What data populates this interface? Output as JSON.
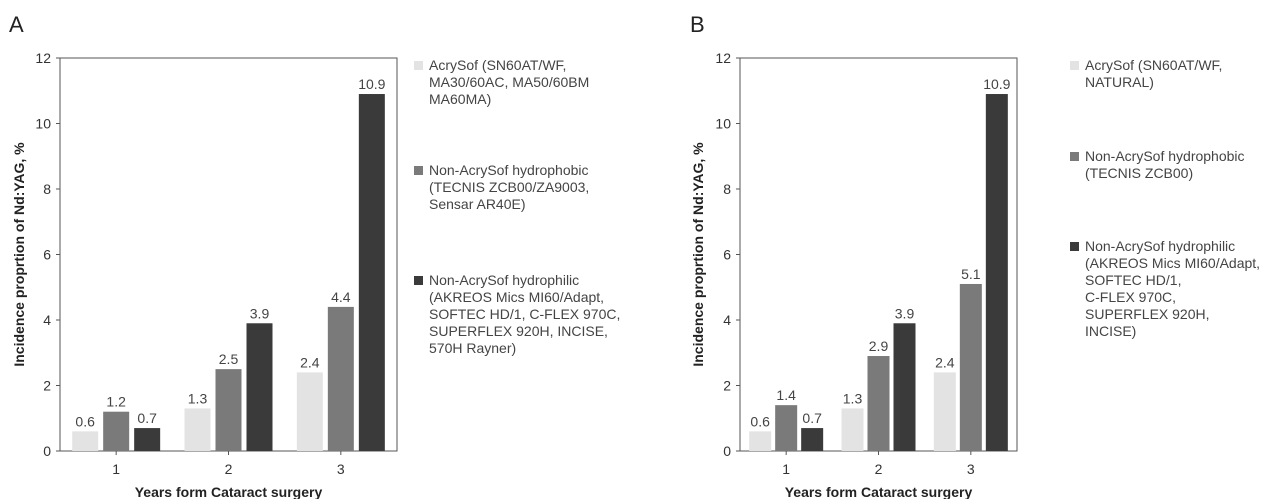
{
  "chart_data": [
    {
      "type": "bar",
      "panel": "A",
      "categories": [
        "1",
        "2",
        "3"
      ],
      "series": [
        {
          "name": "AcrySof (SN60AT/WF, MA30/60AC, MA50/60BM MA60MA)",
          "color": "#e3e3e3",
          "values": [
            0.6,
            1.3,
            2.4
          ],
          "labels": [
            "0.6",
            "1.3",
            "2.4"
          ]
        },
        {
          "name": "Non-AcrySof hydrophobic (TECNIS ZCB00/ZA9003, Sensar AR40E)",
          "color": "#7a7a7a",
          "values": [
            1.2,
            2.5,
            4.4
          ],
          "labels": [
            "1.2",
            "2.5",
            "4.4"
          ]
        },
        {
          "name": "Non-AcrySof hydrophilic (AKREOS Mics MI60/Adapt, SOFTEC HD/1, C-FLEX 970C, SUPERFLEX 920H, INCISE, 570H Rayner)",
          "color": "#3a3a3a",
          "values": [
            0.7,
            3.9,
            10.9
          ],
          "labels": [
            "0.7",
            "3.9",
            "10.9"
          ]
        }
      ],
      "legend_lines": [
        [
          "AcrySof (SN60AT/WF,",
          "MA30/60AC, MA50/60BM",
          "MA60MA)"
        ],
        [
          "Non-AcrySof hydrophobic",
          "(TECNIS ZCB00/ZA9003,",
          "Sensar AR40E)"
        ],
        [
          "Non-AcrySof hydrophilic",
          "(AKREOS Mics MI60/Adapt,",
          "SOFTEC HD/1, C-FLEX 970C,",
          "SUPERFLEX 920H, INCISE,",
          "570H Rayner)"
        ]
      ],
      "xlabel": "Years form Cataract surgery",
      "ylabel": "Incidence proprtion of Nd:YAG, %",
      "ylim": [
        0,
        12
      ],
      "yticks": [
        "0",
        "2",
        "4",
        "6",
        "8",
        "10",
        "12"
      ],
      "grid": false,
      "legend_position": "right"
    },
    {
      "type": "bar",
      "panel": "B",
      "categories": [
        "1",
        "2",
        "3"
      ],
      "series": [
        {
          "name": "AcrySof (SN60AT/WF, NATURAL)",
          "color": "#e3e3e3",
          "values": [
            0.6,
            1.3,
            2.4
          ],
          "labels": [
            "0.6",
            "1.3",
            "2.4"
          ]
        },
        {
          "name": "Non-AcrySof hydrophobic (TECNIS ZCB00)",
          "color": "#7a7a7a",
          "values": [
            1.4,
            2.9,
            5.1
          ],
          "labels": [
            "1.4",
            "2.9",
            "5.1"
          ]
        },
        {
          "name": "Non-AcrySof hydrophilic (AKREOS Mics MI60/Adapt, SOFTEC HD/1, C-FLEX 970C, SUPERFLEX 920H, INCISE)",
          "color": "#3a3a3a",
          "values": [
            0.7,
            3.9,
            10.9
          ],
          "labels": [
            "0.7",
            "3.9",
            "10.9"
          ]
        }
      ],
      "legend_lines": [
        [
          "AcrySof (SN60AT/WF,",
          "NATURAL)"
        ],
        [
          "Non-AcrySof hydrophobic",
          "(TECNIS ZCB00)"
        ],
        [
          "Non-AcrySof hydrophilic",
          "(AKREOS Mics MI60/Adapt,",
          "SOFTEC HD/1,",
          "C-FLEX 970C,",
          "SUPERFLEX 920H,",
          "INCISE)"
        ]
      ],
      "xlabel": "Years form Cataract surgery",
      "ylabel": "Incidence proprtion of Nd:YAG, %",
      "ylim": [
        0,
        12
      ],
      "yticks": [
        "0",
        "2",
        "4",
        "6",
        "8",
        "10",
        "12"
      ],
      "grid": false,
      "legend_position": "right"
    }
  ]
}
